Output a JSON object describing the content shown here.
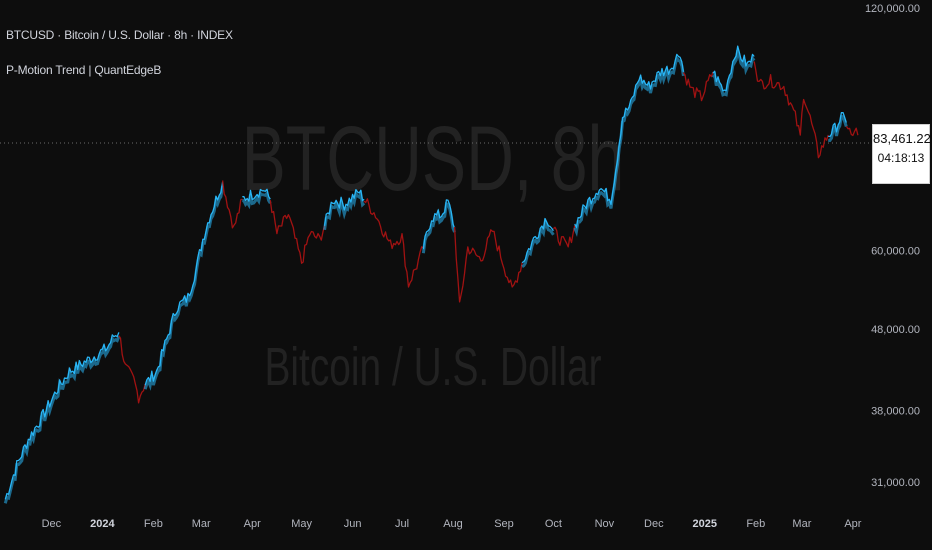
{
  "header": {
    "symbol_line": "BTCUSD · Bitcoin / U.S. Dollar · 8h · INDEX",
    "indicator_line": "P-Motion Trend | QuantEdgeB"
  },
  "watermark": {
    "main": "BTCUSD, 8h",
    "sub": "Bitcoin / U.S. Dollar"
  },
  "price_badge": {
    "price": "83,461.22",
    "countdown": "04:18:13"
  },
  "colors": {
    "background": "#0d0d0d",
    "uptrend": "#29b6f6",
    "downtrend": "#a11212",
    "axis_text": "#b2b5be",
    "watermark": "#222222"
  },
  "chart_data": {
    "type": "line",
    "title": "BTCUSD · Bitcoin / U.S. Dollar · 8h · INDEX",
    "xlabel": "",
    "ylabel": "",
    "y_scale": "log",
    "ylim": [
      28600,
      122800
    ],
    "grid": false,
    "last_price": 83461.22,
    "y_ticks": [
      {
        "value": 120000,
        "label": "120,000.00"
      },
      {
        "value": 60000,
        "label": "60,000.00"
      },
      {
        "value": 48000,
        "label": "48,000.00"
      },
      {
        "value": 38000,
        "label": "38,000.00"
      },
      {
        "value": 31000,
        "label": "31,000.00"
      }
    ],
    "x_ticks": [
      {
        "date": "2023-12-01",
        "label": "Dec",
        "bold": false
      },
      {
        "date": "2024-01-01",
        "label": "2024",
        "bold": true
      },
      {
        "date": "2024-02-01",
        "label": "Feb",
        "bold": false
      },
      {
        "date": "2024-03-01",
        "label": "Mar",
        "bold": false
      },
      {
        "date": "2024-04-01",
        "label": "Apr",
        "bold": false
      },
      {
        "date": "2024-05-01",
        "label": "May",
        "bold": false
      },
      {
        "date": "2024-06-01",
        "label": "Jun",
        "bold": false
      },
      {
        "date": "2024-07-01",
        "label": "Jul",
        "bold": false
      },
      {
        "date": "2024-08-01",
        "label": "Aug",
        "bold": false
      },
      {
        "date": "2024-09-01",
        "label": "Sep",
        "bold": false
      },
      {
        "date": "2024-10-01",
        "label": "Oct",
        "bold": false
      },
      {
        "date": "2024-11-01",
        "label": "Nov",
        "bold": false
      },
      {
        "date": "2024-12-01",
        "label": "Dec",
        "bold": false
      },
      {
        "date": "2025-01-01",
        "label": "2025",
        "bold": true
      },
      {
        "date": "2025-02-01",
        "label": "Feb",
        "bold": false
      },
      {
        "date": "2025-03-01",
        "label": "Mar",
        "bold": false
      },
      {
        "date": "2025-04-01",
        "label": "Apr",
        "bold": false
      }
    ],
    "series": [
      {
        "trend": "up",
        "points": [
          [
            "2023-11-03",
            29500
          ],
          [
            "2023-11-10",
            32500
          ],
          [
            "2023-11-17",
            35000
          ],
          [
            "2023-11-26",
            37500
          ],
          [
            "2023-12-05",
            40500
          ],
          [
            "2023-12-12",
            42500
          ],
          [
            "2023-12-20",
            43500
          ],
          [
            "2023-12-28",
            44500
          ],
          [
            "2024-01-04",
            45500
          ],
          [
            "2024-01-08",
            47000
          ],
          [
            "2024-01-11",
            47500
          ]
        ]
      },
      {
        "trend": "down",
        "points": [
          [
            "2024-01-11",
            47500
          ],
          [
            "2024-01-15",
            43000
          ],
          [
            "2024-01-20",
            41500
          ],
          [
            "2024-01-23",
            39500
          ],
          [
            "2024-01-27",
            41000
          ]
        ]
      },
      {
        "trend": "up",
        "points": [
          [
            "2024-01-27",
            41000
          ],
          [
            "2024-02-03",
            42500
          ],
          [
            "2024-02-09",
            46500
          ],
          [
            "2024-02-15",
            51000
          ],
          [
            "2024-02-22",
            52500
          ],
          [
            "2024-02-27",
            57000
          ],
          [
            "2024-03-02",
            62000
          ],
          [
            "2024-03-06",
            66000
          ],
          [
            "2024-03-09",
            68500
          ],
          [
            "2024-03-14",
            73000
          ]
        ]
      },
      {
        "trend": "down",
        "points": [
          [
            "2024-03-14",
            73000
          ],
          [
            "2024-03-18",
            67500
          ],
          [
            "2024-03-21",
            64000
          ],
          [
            "2024-03-26",
            69500
          ]
        ]
      },
      {
        "trend": "up",
        "points": [
          [
            "2024-03-26",
            69500
          ],
          [
            "2024-04-01",
            70500
          ],
          [
            "2024-04-08",
            71500
          ],
          [
            "2024-04-12",
            69500
          ]
        ]
      },
      {
        "trend": "down",
        "points": [
          [
            "2024-04-12",
            69500
          ],
          [
            "2024-04-16",
            63000
          ],
          [
            "2024-04-23",
            66500
          ],
          [
            "2024-05-01",
            58000
          ],
          [
            "2024-05-06",
            63000
          ],
          [
            "2024-05-12",
            62000
          ],
          [
            "2024-05-15",
            64500
          ]
        ]
      },
      {
        "trend": "up",
        "points": [
          [
            "2024-05-15",
            64500
          ],
          [
            "2024-05-20",
            69500
          ],
          [
            "2024-05-27",
            68500
          ],
          [
            "2024-06-05",
            71000
          ],
          [
            "2024-06-08",
            69500
          ]
        ]
      },
      {
        "trend": "down",
        "points": [
          [
            "2024-06-08",
            69500
          ],
          [
            "2024-06-15",
            66500
          ],
          [
            "2024-06-24",
            61000
          ],
          [
            "2024-07-01",
            62500
          ],
          [
            "2024-07-05",
            54500
          ],
          [
            "2024-07-10",
            57500
          ],
          [
            "2024-07-14",
            60500
          ]
        ]
      },
      {
        "trend": "up",
        "points": [
          [
            "2024-07-14",
            60500
          ],
          [
            "2024-07-19",
            66000
          ],
          [
            "2024-07-25",
            66500
          ],
          [
            "2024-07-29",
            69000
          ],
          [
            "2024-08-02",
            64000
          ]
        ]
      },
      {
        "trend": "down",
        "points": [
          [
            "2024-08-02",
            64000
          ],
          [
            "2024-08-05",
            51000
          ],
          [
            "2024-08-10",
            60500
          ],
          [
            "2024-08-18",
            58500
          ],
          [
            "2024-08-25",
            63500
          ],
          [
            "2024-09-01",
            57500
          ],
          [
            "2024-09-06",
            53500
          ],
          [
            "2024-09-12",
            58000
          ]
        ]
      },
      {
        "trend": "up",
        "points": [
          [
            "2024-09-12",
            58000
          ],
          [
            "2024-09-20",
            62500
          ],
          [
            "2024-09-27",
            66000
          ],
          [
            "2024-10-01",
            63500
          ]
        ]
      },
      {
        "trend": "down",
        "points": [
          [
            "2024-10-01",
            63500
          ],
          [
            "2024-10-05",
            62000
          ],
          [
            "2024-10-10",
            60500
          ],
          [
            "2024-10-14",
            64500
          ]
        ]
      },
      {
        "trend": "up",
        "points": [
          [
            "2024-10-14",
            64500
          ],
          [
            "2024-10-21",
            68500
          ],
          [
            "2024-10-29",
            72000
          ],
          [
            "2024-11-05",
            69500
          ],
          [
            "2024-11-08",
            76000
          ],
          [
            "2024-11-12",
            88000
          ],
          [
            "2024-11-17",
            91000
          ],
          [
            "2024-11-22",
            98500
          ],
          [
            "2024-11-28",
            96000
          ],
          [
            "2024-12-05",
            100000
          ],
          [
            "2024-12-11",
            101000
          ],
          [
            "2024-12-17",
            106000
          ],
          [
            "2024-12-19",
            100000
          ]
        ]
      },
      {
        "trend": "down",
        "points": [
          [
            "2024-12-19",
            100000
          ],
          [
            "2024-12-24",
            95000
          ],
          [
            "2024-12-30",
            93000
          ],
          [
            "2025-01-06",
            100000
          ]
        ]
      },
      {
        "trend": "up",
        "points": [
          [
            "2025-01-06",
            100000
          ],
          [
            "2025-01-13",
            94500
          ],
          [
            "2025-01-20",
            106500
          ],
          [
            "2025-01-27",
            102000
          ],
          [
            "2025-01-31",
            104500
          ]
        ]
      },
      {
        "trend": "down",
        "points": [
          [
            "2025-01-31",
            104500
          ],
          [
            "2025-02-03",
            96500
          ],
          [
            "2025-02-10",
            97500
          ],
          [
            "2025-02-18",
            96000
          ],
          [
            "2025-02-25",
            88000
          ],
          [
            "2025-02-28",
            83000
          ],
          [
            "2025-03-02",
            94000
          ],
          [
            "2025-03-07",
            86000
          ],
          [
            "2025-03-11",
            79000
          ],
          [
            "2025-03-17",
            83500
          ]
        ]
      },
      {
        "trend": "up",
        "points": [
          [
            "2025-03-17",
            83500
          ],
          [
            "2025-03-21",
            85000
          ],
          [
            "2025-03-25",
            88000
          ],
          [
            "2025-03-28",
            86500
          ]
        ]
      },
      {
        "trend": "down",
        "points": [
          [
            "2025-03-28",
            86500
          ],
          [
            "2025-04-01",
            82500
          ],
          [
            "2025-04-02",
            85000
          ],
          [
            "2025-04-04",
            83461.22
          ]
        ]
      }
    ]
  }
}
